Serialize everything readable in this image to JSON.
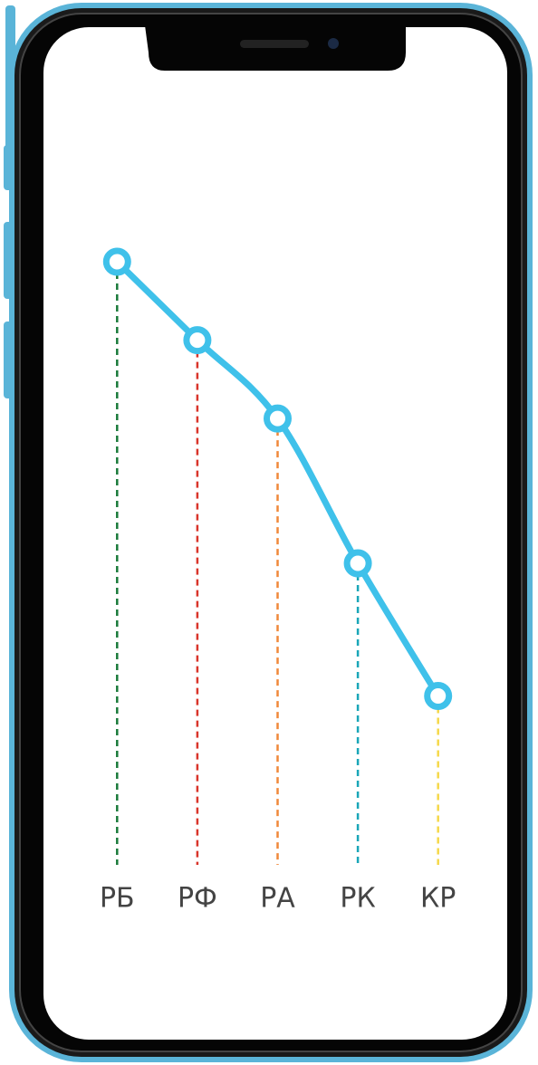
{
  "chart_data": {
    "type": "line",
    "categories": [
      "РБ",
      "РФ",
      "РА",
      "РК",
      "КР"
    ],
    "values": [
      100,
      87,
      74,
      50,
      28
    ],
    "ylim": [
      0,
      100
    ],
    "color": "#3fc1ea",
    "drop_line_colors": [
      "#1a7a3a",
      "#d9352b",
      "#f0883a",
      "#1aa6b8",
      "#f5d84a"
    ]
  }
}
